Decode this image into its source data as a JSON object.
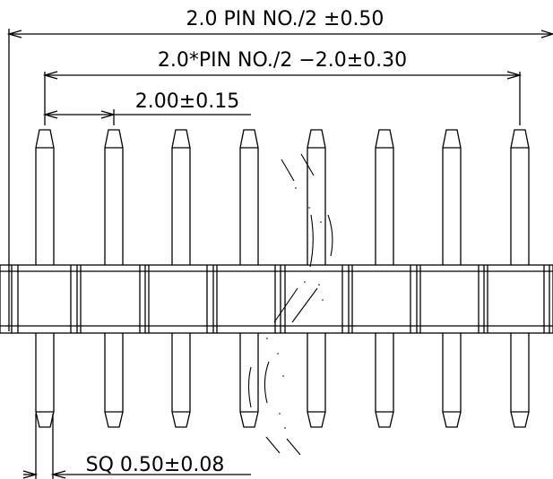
{
  "dimensions": {
    "overall_length": "2.0 PIN NO./2 ±0.50",
    "end_pin_span": "2.0*PIN NO./2 −2.0±0.30",
    "pitch": "2.00±0.15",
    "pin_square": "SQ 0.50±0.08"
  },
  "colors": {
    "line": "#000000",
    "background": "#ffffff"
  },
  "pin_count_shown": 8,
  "break_symbol": "break-lines"
}
